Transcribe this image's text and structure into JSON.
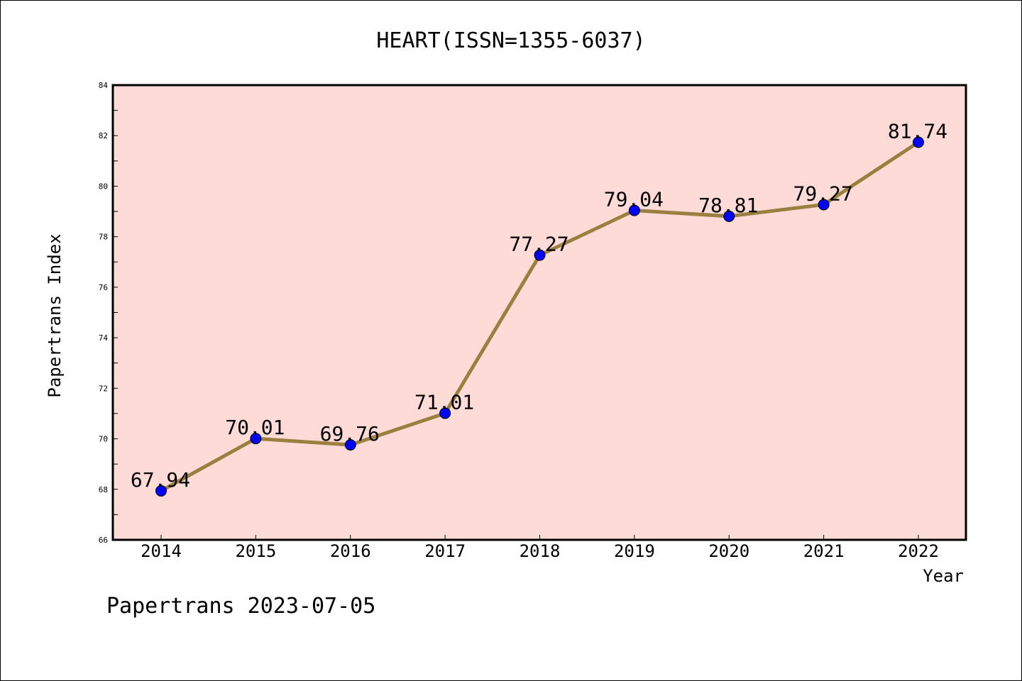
{
  "chart_data": {
    "type": "line",
    "title": "HEART(ISSN=1355-6037)",
    "xlabel": "Year",
    "ylabel": "Papertrans Index",
    "categories": [
      "2014",
      "2015",
      "2016",
      "2017",
      "2018",
      "2019",
      "2020",
      "2021",
      "2022"
    ],
    "values": [
      67.94,
      70.01,
      69.76,
      71.01,
      77.27,
      79.04,
      78.81,
      79.27,
      81.74
    ],
    "data_labels": [
      "67.94",
      "70.01",
      "69.76",
      "71.01",
      "77.27",
      "79.04",
      "78.81",
      "79.27",
      "81.74"
    ],
    "ylim": [
      66,
      84
    ],
    "yticks": [
      66,
      68,
      70,
      72,
      74,
      76,
      78,
      80,
      82,
      84
    ],
    "grid": false,
    "line_color": "#9b7f3e",
    "marker_color": "#0000ff",
    "plot_background": "#ffdbd8"
  },
  "footer": "Papertrans 2023-07-05"
}
